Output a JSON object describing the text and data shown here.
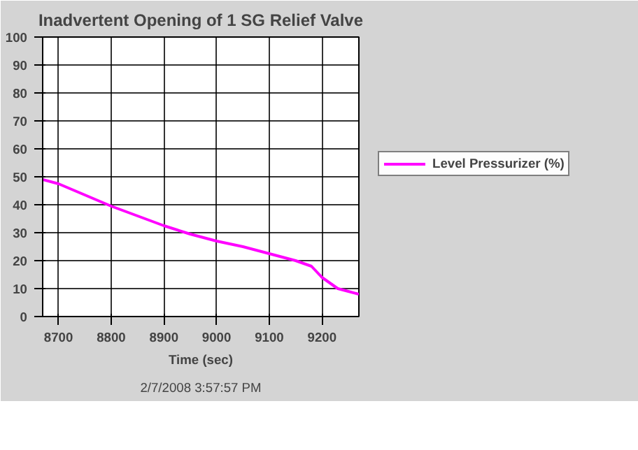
{
  "chart_data": {
    "type": "line",
    "title": "Inadvertent Opening of 1 SG Relief Valve",
    "xlabel": "Time (sec)",
    "annotations": [
      "2/7/2008 3:57:57 PM"
    ],
    "x": [
      8670,
      8700,
      8750,
      8800,
      8850,
      8900,
      8950,
      9000,
      9050,
      9100,
      9150,
      9180,
      9200,
      9230,
      9250,
      9270
    ],
    "series": [
      {
        "name": "Level Pressurizer (%)",
        "color": "#ff00ff",
        "values": [
          49,
          47.5,
          43.5,
          39.5,
          36,
          32.5,
          29.5,
          27,
          25,
          22.5,
          20,
          18,
          14,
          10,
          9,
          8
        ]
      }
    ],
    "xlim": [
      8670,
      9270
    ],
    "ylim": [
      0,
      100
    ],
    "xticks": [
      8700,
      8800,
      8900,
      9000,
      9100,
      9200
    ],
    "yticks": [
      0,
      10,
      20,
      30,
      40,
      50,
      60,
      70,
      80,
      90,
      100
    ],
    "grid": true,
    "legend": "right",
    "marker": "none",
    "line_style": "solid"
  }
}
